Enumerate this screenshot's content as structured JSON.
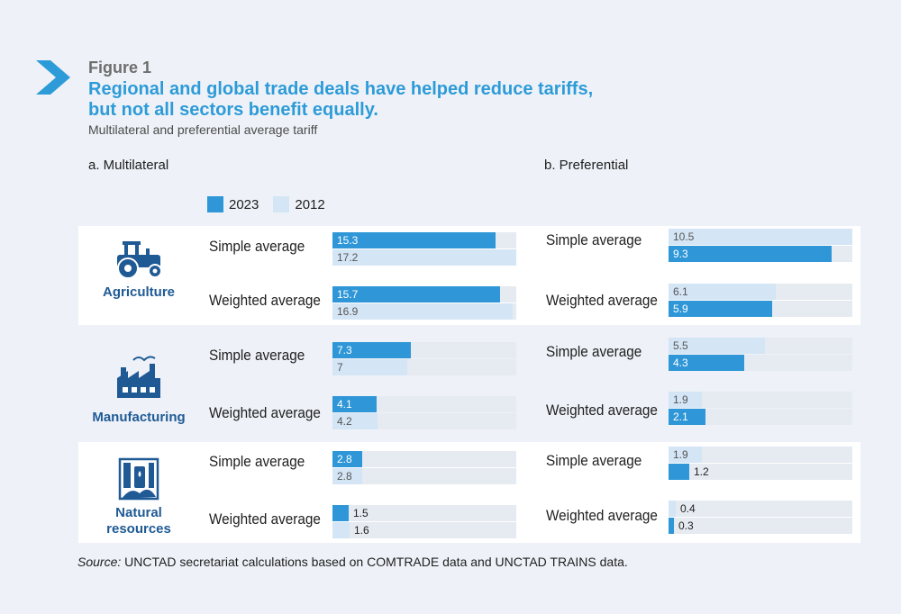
{
  "figure": {
    "label": "Figure 1",
    "title_line1": "Regional and global trade deals have helped reduce tariffs,",
    "title_line2": "but not all sectors benefit equally.",
    "subtitle": "Multilateral and preferential average tariff"
  },
  "legend": {
    "series_2023": "2023",
    "series_2012": "2012"
  },
  "source": {
    "prefix": "Source:",
    "text": " UNCTAD secretariat calculations based on COMTRADE data and UNCTAD TRAINS data."
  },
  "colors": {
    "y2023": "#2f97d7",
    "y2012": "#d4e5f5",
    "accent": "#2d9bd8",
    "sector": "#1f5a95"
  },
  "sectors": [
    {
      "name": "Agriculture",
      "icon": "tractor-icon"
    },
    {
      "name": "Manufacturing",
      "icon": "factory-icon"
    },
    {
      "name": "Natural resources",
      "name_line1": "Natural",
      "name_line2": "resources",
      "icon": "natural-resources-icon"
    }
  ],
  "chart_data": [
    {
      "type": "bar",
      "orientation": "horizontal",
      "title": "a. Multilateral",
      "xlim": [
        0,
        17.2
      ],
      "series_names": [
        "2023",
        "2012"
      ],
      "rows": [
        {
          "sector": "Agriculture",
          "measure": "Simple average",
          "v2023": 15.3,
          "v2012": 17.2
        },
        {
          "sector": "Agriculture",
          "measure": "Weighted average",
          "v2023": 15.7,
          "v2012": 16.9
        },
        {
          "sector": "Manufacturing",
          "measure": "Simple average",
          "v2023": 7.3,
          "v2012": 7
        },
        {
          "sector": "Manufacturing",
          "measure": "Weighted average",
          "v2023": 4.1,
          "v2012": 4.2
        },
        {
          "sector": "Natural resources",
          "measure": "Simple average",
          "v2023": 2.8,
          "v2012": 2.8
        },
        {
          "sector": "Natural resources",
          "measure": "Weighted average",
          "v2023": 1.5,
          "v2012": 1.6
        }
      ]
    },
    {
      "type": "bar",
      "orientation": "horizontal",
      "title": "b. Preferential",
      "xlim": [
        0,
        10.5
      ],
      "series_names": [
        "2012",
        "2023"
      ],
      "rows": [
        {
          "sector": "Agriculture",
          "measure": "Simple average",
          "v2012": 10.5,
          "v2023": 9.3
        },
        {
          "sector": "Agriculture",
          "measure": "Weighted average",
          "v2012": 6.1,
          "v2023": 5.9
        },
        {
          "sector": "Manufacturing",
          "measure": "Simple average",
          "v2012": 5.5,
          "v2023": 4.3
        },
        {
          "sector": "Manufacturing",
          "measure": "Weighted average",
          "v2012": 1.9,
          "v2023": 2.1
        },
        {
          "sector": "Natural resources",
          "measure": "Simple average",
          "v2012": 1.9,
          "v2023": 1.2
        },
        {
          "sector": "Natural resources",
          "measure": "Weighted average",
          "v2012": 0.4,
          "v2023": 0.3
        }
      ]
    }
  ]
}
